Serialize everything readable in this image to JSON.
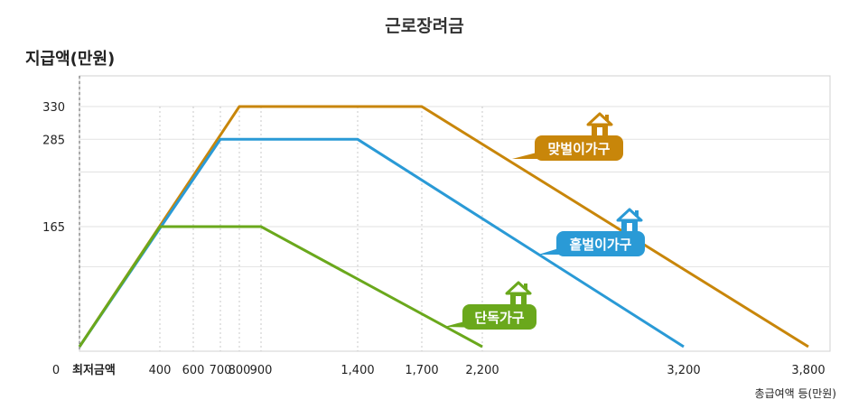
{
  "chart_data": {
    "type": "line",
    "title": "근로장려금",
    "ylabel": "지급액(만원)",
    "xlabel": "총급여액 등(만원)",
    "origin_label": "0",
    "xmin_label": "최저금액",
    "xlim": [
      0,
      3800
    ],
    "ylim": [
      0,
      360
    ],
    "x_ticks": [
      {
        "value": 400,
        "label": "400"
      },
      {
        "value": 600,
        "label": "600"
      },
      {
        "value": 700,
        "label": "700"
      },
      {
        "value": 800,
        "label": "800"
      },
      {
        "value": 900,
        "label": "900"
      },
      {
        "value": 1400,
        "label": "1,400"
      },
      {
        "value": 1700,
        "label": "1,700"
      },
      {
        "value": 2200,
        "label": "2,200"
      },
      {
        "value": 3200,
        "label": "3,200"
      },
      {
        "value": 3800,
        "label": "3,800"
      }
    ],
    "y_ticks": [
      {
        "value": 165,
        "label": "165"
      },
      {
        "value": 285,
        "label": "285"
      },
      {
        "value": 330,
        "label": "330"
      }
    ],
    "y_gridlines": [
      110,
      165,
      240,
      285,
      330
    ],
    "grid": true,
    "series": [
      {
        "name": "맞벌이가구",
        "color": "#c8860a",
        "points": [
          [
            0,
            0
          ],
          [
            800,
            330
          ],
          [
            1700,
            330
          ],
          [
            3800,
            0
          ]
        ],
        "badge_icon": "house-icon"
      },
      {
        "name": "홑벌이가구",
        "color": "#2a9ad6",
        "points": [
          [
            0,
            0
          ],
          [
            700,
            285
          ],
          [
            1400,
            285
          ],
          [
            3200,
            0
          ]
        ],
        "badge_icon": "house-icon"
      },
      {
        "name": "단독가구",
        "color": "#6aa81c",
        "points": [
          [
            0,
            0
          ],
          [
            400,
            165
          ],
          [
            900,
            165
          ],
          [
            2200,
            0
          ]
        ],
        "badge_icon": "house-icon"
      }
    ]
  }
}
